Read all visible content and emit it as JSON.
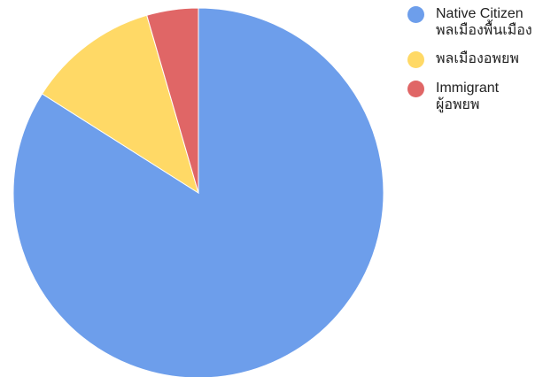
{
  "chart_data": {
    "type": "pie",
    "title": "",
    "start_angle_deg": 0,
    "direction": "clockwise",
    "slices": [
      {
        "label": "Native Citizen",
        "label_th": "พลเมืองพื้นเมือง",
        "value": 84.0,
        "color": "#6D9EEB"
      },
      {
        "label": "",
        "label_th": "พลเมืองอพยพ",
        "value": 11.5,
        "color": "#FFD966"
      },
      {
        "label": "Immigrant",
        "label_th": "ผู้อพยพ",
        "value": 4.5,
        "color": "#E06666"
      }
    ],
    "legend_position": "top-right"
  }
}
